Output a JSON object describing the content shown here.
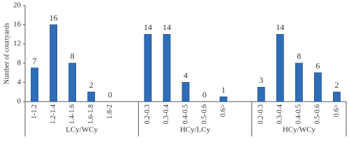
{
  "chart_data": {
    "type": "bar",
    "y_label": "Number of courtyards",
    "categories": [
      "1-1.2",
      "1.2-1.4",
      "1.4-1.6",
      "1.6-1.8",
      "1.8-2",
      null,
      "0.2-0.3",
      "0.3-0.4",
      "0.4-0.5",
      "0.5-0.6",
      "0.6>",
      null,
      "0.2-0.3",
      "0.3-0.4",
      "0.4-0.5",
      "0.5-0.6",
      "0.6>"
    ],
    "values": [
      7,
      16,
      8,
      2,
      0,
      null,
      14,
      14,
      4,
      0,
      1,
      null,
      3,
      14,
      8,
      6,
      2
    ],
    "groups": [
      "LCy/WCy",
      "HCy/LCy",
      "HCy/WCy"
    ],
    "color": "#2f6db8",
    "ylim": [
      0,
      20
    ],
    "yticks": [
      0,
      4,
      8,
      12,
      16,
      20
    ]
  }
}
